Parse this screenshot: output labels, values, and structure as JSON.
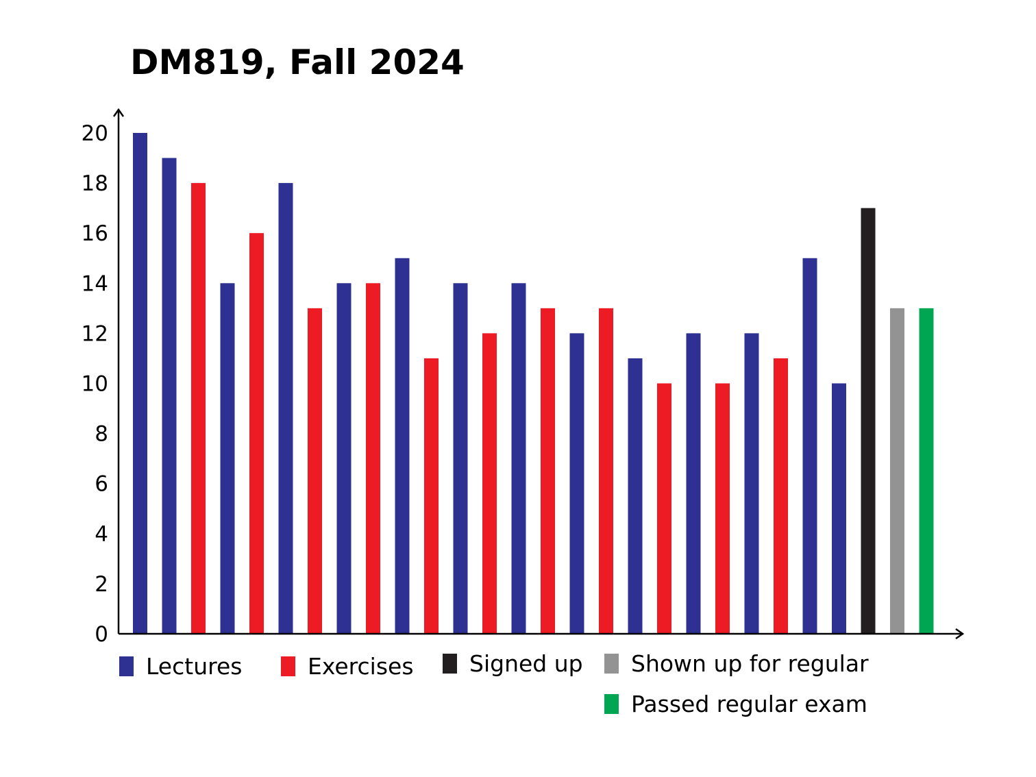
{
  "chart_data": {
    "type": "bar",
    "title": "DM819, Fall 2024",
    "xlabel": "",
    "ylabel": "",
    "ylim": [
      0,
      20
    ],
    "yticks": [
      0,
      2,
      4,
      6,
      8,
      10,
      12,
      14,
      16,
      18,
      20
    ],
    "grid": false,
    "legend_position": "bottom",
    "colors": {
      "Lectures": "#2e3192",
      "Exercises": "#ed1c24",
      "Signed up": "#231f20",
      "Shown up for regular": "#939393",
      "Passed regular exam": "#00a651"
    },
    "bars": [
      {
        "series": "Lectures",
        "value": 20
      },
      {
        "series": "Lectures",
        "value": 19
      },
      {
        "series": "Exercises",
        "value": 18
      },
      {
        "series": "Lectures",
        "value": 14
      },
      {
        "series": "Exercises",
        "value": 16
      },
      {
        "series": "Lectures",
        "value": 18
      },
      {
        "series": "Exercises",
        "value": 13
      },
      {
        "series": "Lectures",
        "value": 14
      },
      {
        "series": "Exercises",
        "value": 14
      },
      {
        "series": "Lectures",
        "value": 15
      },
      {
        "series": "Exercises",
        "value": 11
      },
      {
        "series": "Lectures",
        "value": 14
      },
      {
        "series": "Exercises",
        "value": 12
      },
      {
        "series": "Lectures",
        "value": 14
      },
      {
        "series": "Exercises",
        "value": 13
      },
      {
        "series": "Lectures",
        "value": 12
      },
      {
        "series": "Exercises",
        "value": 13
      },
      {
        "series": "Lectures",
        "value": 11
      },
      {
        "series": "Exercises",
        "value": 10
      },
      {
        "series": "Lectures",
        "value": 12
      },
      {
        "series": "Exercises",
        "value": 10
      },
      {
        "series": "Lectures",
        "value": 12
      },
      {
        "series": "Exercises",
        "value": 11
      },
      {
        "series": "Lectures",
        "value": 15
      },
      {
        "series": "Lectures",
        "value": 10
      },
      {
        "series": "Signed up",
        "value": 17
      },
      {
        "series": "Shown up for regular",
        "value": 13
      },
      {
        "series": "Passed regular exam",
        "value": 13
      }
    ],
    "legend": [
      "Lectures",
      "Exercises",
      "Signed up",
      "Shown up for regular",
      "Passed regular exam"
    ]
  }
}
